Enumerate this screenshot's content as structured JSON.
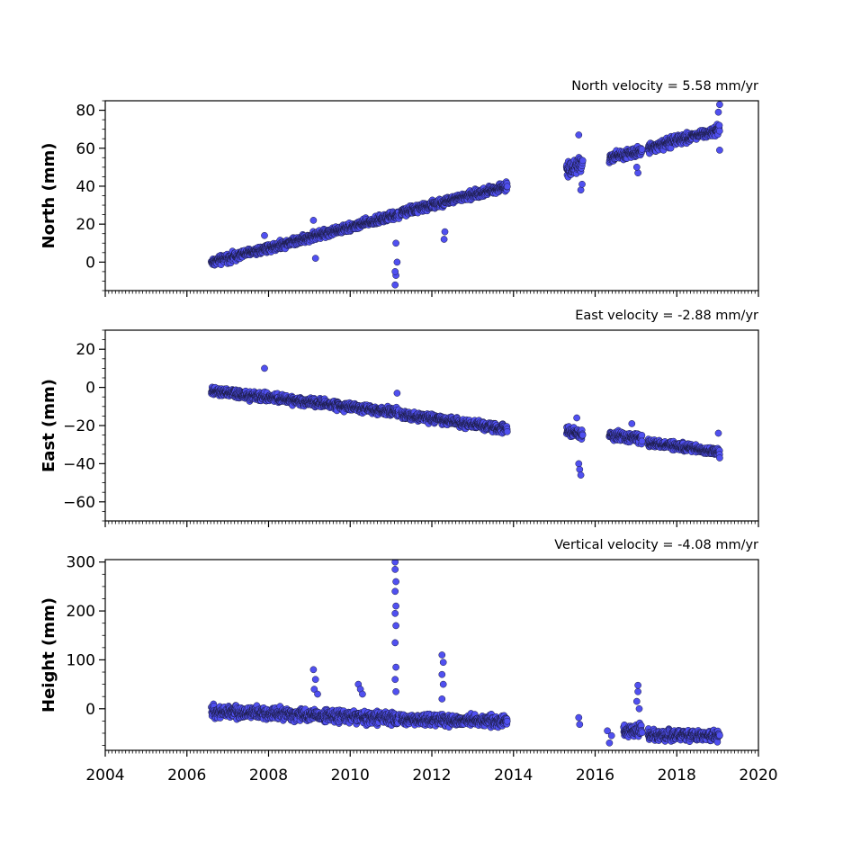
{
  "chart_data": [
    {
      "type": "scatter",
      "title": "North velocity = 5.58 mm/yr",
      "ylabel": "North (mm)",
      "xlabel": "",
      "xlim": [
        2004,
        2020
      ],
      "ylim": [
        -15,
        85
      ],
      "xticks": [
        2004,
        2006,
        2008,
        2010,
        2012,
        2014,
        2016,
        2018,
        2020
      ],
      "yticks": [
        0,
        20,
        40,
        60,
        80
      ],
      "show_xtick_labels": false,
      "marker_color": "#5050f0",
      "marker_edge_color": "#1a1a40",
      "segments": [
        {
          "x_start": 2006.6,
          "x_end": 2011.2,
          "y_start": 0,
          "y_end": 25,
          "noise": 1.8
        },
        {
          "x_start": 2011.25,
          "x_end": 2013.85,
          "y_start": 26,
          "y_end": 40,
          "noise": 1.8
        },
        {
          "x_start": 2015.3,
          "x_end": 2015.7,
          "y_start": 49,
          "y_end": 52,
          "noise": 3
        },
        {
          "x_start": 2016.35,
          "x_end": 2017.15,
          "y_start": 55,
          "y_end": 59,
          "noise": 2
        },
        {
          "x_start": 2017.3,
          "x_end": 2019.05,
          "y_start": 60,
          "y_end": 70,
          "noise": 2
        }
      ],
      "outliers": [
        {
          "x": 2007.9,
          "y": 14
        },
        {
          "x": 2009.1,
          "y": 22
        },
        {
          "x": 2009.15,
          "y": 2
        },
        {
          "x": 2011.1,
          "y": -12
        },
        {
          "x": 2011.12,
          "y": -7
        },
        {
          "x": 2011.1,
          "y": -5
        },
        {
          "x": 2011.15,
          "y": 0
        },
        {
          "x": 2011.12,
          "y": 10
        },
        {
          "x": 2012.3,
          "y": 12
        },
        {
          "x": 2012.32,
          "y": 16
        },
        {
          "x": 2015.6,
          "y": 67
        },
        {
          "x": 2015.65,
          "y": 38
        },
        {
          "x": 2015.68,
          "y": 41
        },
        {
          "x": 2017.05,
          "y": 47
        },
        {
          "x": 2017.02,
          "y": 50
        },
        {
          "x": 2019.05,
          "y": 59
        },
        {
          "x": 2019.05,
          "y": 83
        },
        {
          "x": 2019.02,
          "y": 79
        }
      ]
    },
    {
      "type": "scatter",
      "title": "East velocity = -2.88 mm/yr",
      "ylabel": "East (mm)",
      "xlabel": "",
      "xlim": [
        2004,
        2020
      ],
      "ylim": [
        -70,
        30
      ],
      "xticks": [
        2004,
        2006,
        2008,
        2010,
        2012,
        2014,
        2016,
        2018,
        2020
      ],
      "yticks": [
        -60,
        -40,
        -20,
        0,
        20
      ],
      "show_xtick_labels": false,
      "marker_color": "#5050f0",
      "marker_edge_color": "#1a1a40",
      "segments": [
        {
          "x_start": 2006.6,
          "x_end": 2011.2,
          "y_start": -2,
          "y_end": -13,
          "noise": 1.8
        },
        {
          "x_start": 2011.25,
          "x_end": 2013.85,
          "y_start": -14,
          "y_end": -22,
          "noise": 1.8
        },
        {
          "x_start": 2015.3,
          "x_end": 2015.7,
          "y_start": -23,
          "y_end": -25,
          "noise": 2
        },
        {
          "x_start": 2016.35,
          "x_end": 2017.15,
          "y_start": -25,
          "y_end": -27,
          "noise": 2
        },
        {
          "x_start": 2017.3,
          "x_end": 2019.05,
          "y_start": -29,
          "y_end": -34,
          "noise": 1.8
        }
      ],
      "outliers": [
        {
          "x": 2007.9,
          "y": 10
        },
        {
          "x": 2011.15,
          "y": -3
        },
        {
          "x": 2015.55,
          "y": -16
        },
        {
          "x": 2015.6,
          "y": -40
        },
        {
          "x": 2015.62,
          "y": -43
        },
        {
          "x": 2015.65,
          "y": -46
        },
        {
          "x": 2016.9,
          "y": -19
        },
        {
          "x": 2019.02,
          "y": -24
        },
        {
          "x": 2019.05,
          "y": -37
        }
      ]
    },
    {
      "type": "scatter",
      "title": "Vertical velocity = -4.08 mm/yr",
      "ylabel": "Height (mm)",
      "xlabel": "",
      "xlim": [
        2004,
        2020
      ],
      "ylim": [
        -85,
        305
      ],
      "xticks": [
        2004,
        2006,
        2008,
        2010,
        2012,
        2014,
        2016,
        2018,
        2020
      ],
      "xtick_labels": [
        "2004",
        "2006",
        "2008",
        "2010",
        "2012",
        "2014",
        "2016",
        "2018",
        "2020"
      ],
      "yticks": [
        0,
        100,
        200,
        300
      ],
      "show_xtick_labels": true,
      "marker_color": "#5050f0",
      "marker_edge_color": "#1a1a40",
      "segments": [
        {
          "x_start": 2006.6,
          "x_end": 2011.2,
          "y_start": -5,
          "y_end": -20,
          "noise": 10
        },
        {
          "x_start": 2011.25,
          "x_end": 2013.85,
          "y_start": -22,
          "y_end": -25,
          "noise": 9
        },
        {
          "x_start": 2016.7,
          "x_end": 2017.15,
          "y_start": -45,
          "y_end": -45,
          "noise": 10
        },
        {
          "x_start": 2017.3,
          "x_end": 2019.05,
          "y_start": -55,
          "y_end": -55,
          "noise": 9
        }
      ],
      "outliers": [
        {
          "x": 2009.1,
          "y": 80
        },
        {
          "x": 2009.15,
          "y": 60
        },
        {
          "x": 2009.12,
          "y": 40
        },
        {
          "x": 2009.2,
          "y": 30
        },
        {
          "x": 2010.2,
          "y": 50
        },
        {
          "x": 2010.25,
          "y": 40
        },
        {
          "x": 2010.3,
          "y": 30
        },
        {
          "x": 2011.1,
          "y": 300
        },
        {
          "x": 2011.1,
          "y": 285
        },
        {
          "x": 2011.12,
          "y": 260
        },
        {
          "x": 2011.1,
          "y": 240
        },
        {
          "x": 2011.12,
          "y": 210
        },
        {
          "x": 2011.1,
          "y": 195
        },
        {
          "x": 2011.12,
          "y": 170
        },
        {
          "x": 2011.1,
          "y": 135
        },
        {
          "x": 2011.12,
          "y": 85
        },
        {
          "x": 2011.1,
          "y": 60
        },
        {
          "x": 2011.12,
          "y": 35
        },
        {
          "x": 2012.25,
          "y": 110
        },
        {
          "x": 2012.28,
          "y": 95
        },
        {
          "x": 2012.25,
          "y": 70
        },
        {
          "x": 2012.28,
          "y": 50
        },
        {
          "x": 2012.25,
          "y": 20
        },
        {
          "x": 2015.6,
          "y": -18
        },
        {
          "x": 2015.62,
          "y": -32
        },
        {
          "x": 2016.3,
          "y": -45
        },
        {
          "x": 2016.4,
          "y": -55
        },
        {
          "x": 2016.35,
          "y": -70
        },
        {
          "x": 2017.05,
          "y": 48
        },
        {
          "x": 2017.05,
          "y": 35
        },
        {
          "x": 2017.02,
          "y": 15
        },
        {
          "x": 2017.08,
          "y": 0
        }
      ]
    }
  ]
}
